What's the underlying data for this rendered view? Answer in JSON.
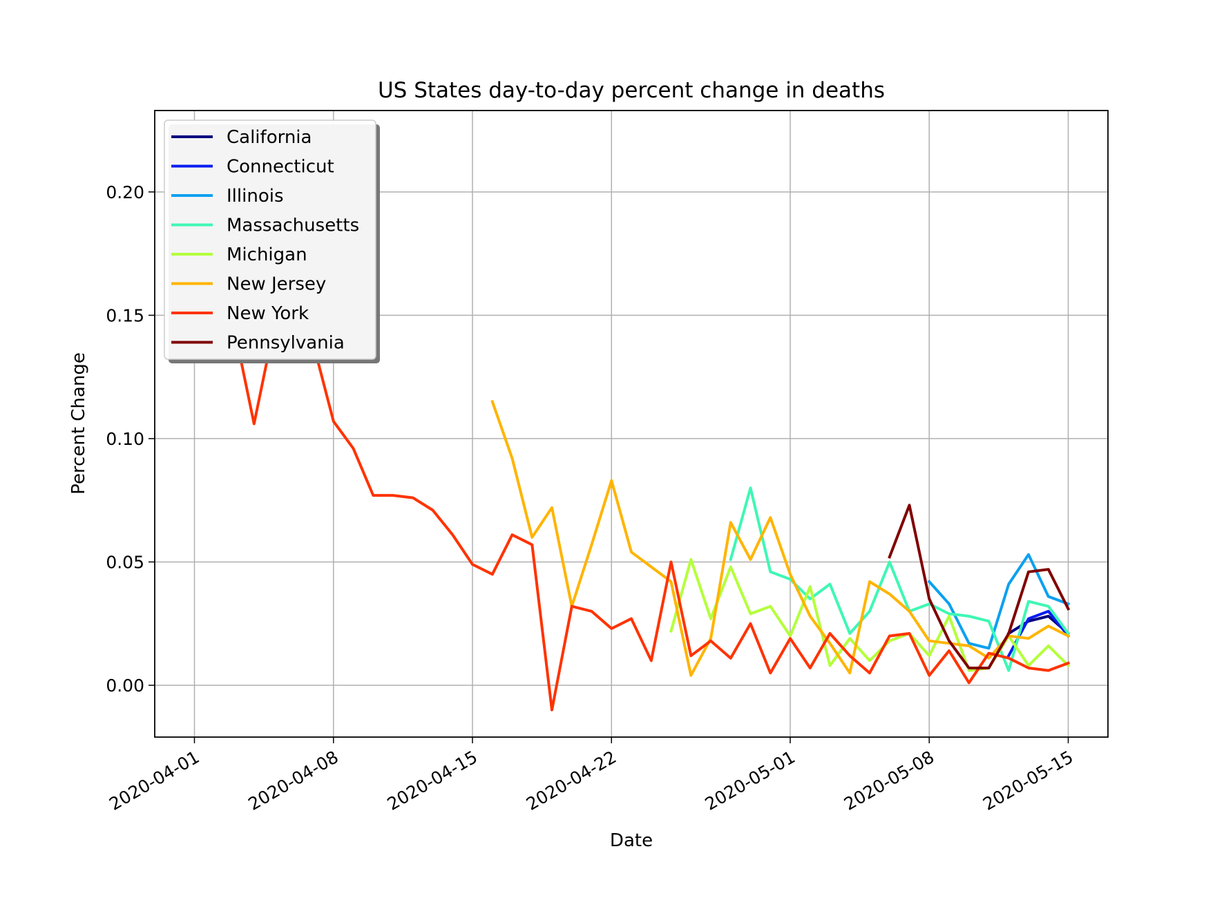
{
  "chart_data": {
    "type": "line",
    "title": "US States day-to-day percent change in deaths",
    "xlabel": "Date",
    "ylabel": "Percent Change",
    "x_tick_labels": [
      "2020-04-01",
      "2020-04-08",
      "2020-04-15",
      "2020-04-22",
      "2020-05-01",
      "2020-05-08",
      "2020-05-15"
    ],
    "y_tick_labels": [
      "0.00",
      "0.05",
      "0.10",
      "0.15",
      "0.20"
    ],
    "y_ticks": [
      0.0,
      0.05,
      0.1,
      0.15,
      0.2
    ],
    "ylim": [
      -0.021,
      0.233
    ],
    "xlim": [
      "2020-03-30",
      "2020-05-17"
    ],
    "grid": true,
    "legend_position": "top-left",
    "series": [
      {
        "name": "California",
        "color": "#000080",
        "points": [
          [
            "2020-05-12",
            0.021
          ],
          [
            "2020-05-13",
            0.026
          ],
          [
            "2020-05-14",
            0.028
          ],
          [
            "2020-05-15",
            0.021
          ]
        ]
      },
      {
        "name": "Connecticut",
        "color": "#0a1cf0",
        "points": [
          [
            "2020-05-12",
            0.012
          ],
          [
            "2020-05-13",
            0.027
          ],
          [
            "2020-05-14",
            0.03
          ],
          [
            "2020-05-15",
            0.02
          ]
        ]
      },
      {
        "name": "Illinois",
        "color": "#0ca0f0",
        "points": [
          [
            "2020-05-08",
            0.042
          ],
          [
            "2020-05-09",
            0.033
          ],
          [
            "2020-05-10",
            0.017
          ],
          [
            "2020-05-11",
            0.015
          ],
          [
            "2020-05-12",
            0.041
          ],
          [
            "2020-05-13",
            0.053
          ],
          [
            "2020-05-14",
            0.036
          ],
          [
            "2020-05-15",
            0.033
          ]
        ]
      },
      {
        "name": "Massachusetts",
        "color": "#3ff7b4",
        "points": [
          [
            "2020-04-28",
            0.051
          ],
          [
            "2020-04-29",
            0.08
          ],
          [
            "2020-04-30",
            0.046
          ],
          [
            "2020-05-01",
            0.043
          ],
          [
            "2020-05-02",
            0.035
          ],
          [
            "2020-05-03",
            0.041
          ],
          [
            "2020-05-04",
            0.021
          ],
          [
            "2020-05-05",
            0.03
          ],
          [
            "2020-05-06",
            0.05
          ],
          [
            "2020-05-07",
            0.03
          ],
          [
            "2020-05-08",
            0.033
          ],
          [
            "2020-05-09",
            0.029
          ],
          [
            "2020-05-10",
            0.028
          ],
          [
            "2020-05-11",
            0.026
          ],
          [
            "2020-05-12",
            0.006
          ],
          [
            "2020-05-13",
            0.034
          ],
          [
            "2020-05-14",
            0.032
          ],
          [
            "2020-05-15",
            0.021
          ]
        ]
      },
      {
        "name": "Michigan",
        "color": "#b4ff3c",
        "points": [
          [
            "2020-04-25",
            0.022
          ],
          [
            "2020-04-26",
            0.051
          ],
          [
            "2020-04-27",
            0.027
          ],
          [
            "2020-04-28",
            0.048
          ],
          [
            "2020-04-29",
            0.029
          ],
          [
            "2020-04-30",
            0.032
          ],
          [
            "2020-05-01",
            0.02
          ],
          [
            "2020-05-02",
            0.04
          ],
          [
            "2020-05-03",
            0.008
          ],
          [
            "2020-05-04",
            0.019
          ],
          [
            "2020-05-05",
            0.01
          ],
          [
            "2020-05-06",
            0.018
          ],
          [
            "2020-05-07",
            0.021
          ],
          [
            "2020-05-08",
            0.012
          ],
          [
            "2020-05-09",
            0.028
          ],
          [
            "2020-05-10",
            0.006
          ],
          [
            "2020-05-11",
            0.007
          ],
          [
            "2020-05-12",
            0.02
          ],
          [
            "2020-05-13",
            0.008
          ],
          [
            "2020-05-14",
            0.016
          ],
          [
            "2020-05-15",
            0.008
          ]
        ]
      },
      {
        "name": "New Jersey",
        "color": "#ffb400",
        "points": [
          [
            "2020-04-16",
            0.115
          ],
          [
            "2020-04-17",
            0.092
          ],
          [
            "2020-04-18",
            0.06
          ],
          [
            "2020-04-19",
            0.072
          ],
          [
            "2020-04-20",
            0.032
          ],
          [
            "2020-04-21",
            0.057
          ],
          [
            "2020-04-22",
            0.083
          ],
          [
            "2020-04-23",
            0.054
          ],
          [
            "2020-04-24",
            0.048
          ],
          [
            "2020-04-25",
            0.042
          ],
          [
            "2020-04-26",
            0.004
          ],
          [
            "2020-04-27",
            0.019
          ],
          [
            "2020-04-28",
            0.066
          ],
          [
            "2020-04-29",
            0.051
          ],
          [
            "2020-04-30",
            0.068
          ],
          [
            "2020-05-01",
            0.045
          ],
          [
            "2020-05-02",
            0.028
          ],
          [
            "2020-05-03",
            0.017
          ],
          [
            "2020-05-04",
            0.005
          ],
          [
            "2020-05-05",
            0.042
          ],
          [
            "2020-05-06",
            0.037
          ],
          [
            "2020-05-07",
            0.03
          ],
          [
            "2020-05-08",
            0.018
          ],
          [
            "2020-05-09",
            0.017
          ],
          [
            "2020-05-10",
            0.016
          ],
          [
            "2020-05-11",
            0.011
          ],
          [
            "2020-05-12",
            0.02
          ],
          [
            "2020-05-13",
            0.019
          ],
          [
            "2020-05-14",
            0.024
          ],
          [
            "2020-05-15",
            0.02
          ]
        ]
      },
      {
        "name": "New York",
        "color": "#ff3300",
        "points": [
          [
            "2020-04-03",
            0.145
          ],
          [
            "2020-04-04",
            0.106
          ],
          [
            "2020-04-05",
            0.145
          ],
          [
            "2020-04-06",
            0.15
          ],
          [
            "2020-04-07",
            0.138
          ],
          [
            "2020-04-08",
            0.107
          ],
          [
            "2020-04-09",
            0.096
          ],
          [
            "2020-04-10",
            0.077
          ],
          [
            "2020-04-11",
            0.077
          ],
          [
            "2020-04-12",
            0.076
          ],
          [
            "2020-04-13",
            0.071
          ],
          [
            "2020-04-14",
            0.061
          ],
          [
            "2020-04-15",
            0.049
          ],
          [
            "2020-04-16",
            0.045
          ],
          [
            "2020-04-17",
            0.061
          ],
          [
            "2020-04-18",
            0.057
          ],
          [
            "2020-04-19",
            -0.01
          ],
          [
            "2020-04-20",
            0.032
          ],
          [
            "2020-04-21",
            0.03
          ],
          [
            "2020-04-22",
            0.023
          ],
          [
            "2020-04-23",
            0.027
          ],
          [
            "2020-04-24",
            0.01
          ],
          [
            "2020-04-25",
            0.05
          ],
          [
            "2020-04-26",
            0.012
          ],
          [
            "2020-04-27",
            0.018
          ],
          [
            "2020-04-28",
            0.011
          ],
          [
            "2020-04-29",
            0.025
          ],
          [
            "2020-04-30",
            0.005
          ],
          [
            "2020-05-01",
            0.019
          ],
          [
            "2020-05-02",
            0.007
          ],
          [
            "2020-05-03",
            0.021
          ],
          [
            "2020-05-04",
            0.012
          ],
          [
            "2020-05-05",
            0.005
          ],
          [
            "2020-05-06",
            0.02
          ],
          [
            "2020-05-07",
            0.021
          ],
          [
            "2020-05-08",
            0.004
          ],
          [
            "2020-05-09",
            0.014
          ],
          [
            "2020-05-10",
            0.001
          ],
          [
            "2020-05-11",
            0.013
          ],
          [
            "2020-05-12",
            0.011
          ],
          [
            "2020-05-13",
            0.007
          ],
          [
            "2020-05-14",
            0.006
          ],
          [
            "2020-05-15",
            0.009
          ]
        ]
      },
      {
        "name": "Pennsylvania",
        "color": "#800000",
        "points": [
          [
            "2020-05-06",
            0.052
          ],
          [
            "2020-05-07",
            0.073
          ],
          [
            "2020-05-08",
            0.035
          ],
          [
            "2020-05-09",
            0.018
          ],
          [
            "2020-05-10",
            0.007
          ],
          [
            "2020-05-11",
            0.007
          ],
          [
            "2020-05-12",
            0.021
          ],
          [
            "2020-05-13",
            0.046
          ],
          [
            "2020-05-14",
            0.047
          ],
          [
            "2020-05-15",
            0.031
          ]
        ]
      }
    ]
  }
}
